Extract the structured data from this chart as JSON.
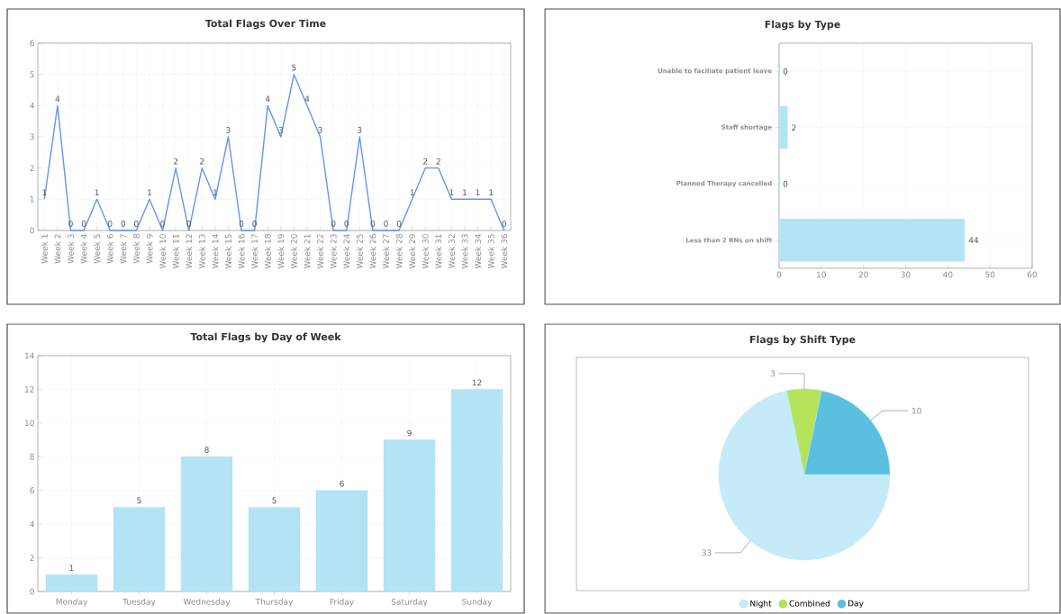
{
  "chart_data": [
    {
      "type": "line",
      "title": "Total Flags Over Time",
      "categories": [
        "Week 1",
        "Week 2",
        "Week 3",
        "Week 4",
        "Week 5",
        "Week 6",
        "Week 7",
        "Week 8",
        "Week 9",
        "Week 10",
        "Week 11",
        "Week 12",
        "Week 13",
        "Week 14",
        "Week 15",
        "Week 16",
        "Week 17",
        "Week 18",
        "Week 19",
        "Week 20",
        "Week 21",
        "Week 22",
        "Week 23",
        "Week 24",
        "Week 25",
        "Week 26",
        "Week 27",
        "Week 28",
        "Week 29",
        "Week 30",
        "Week 31",
        "Week 32",
        "Week 33",
        "Week 34",
        "Week 35",
        "Week 36"
      ],
      "values": [
        1,
        4,
        0,
        0,
        1,
        0,
        0,
        0,
        1,
        0,
        2,
        0,
        2,
        1,
        3,
        0,
        0,
        4,
        3,
        5,
        4,
        3,
        0,
        0,
        3,
        0,
        0,
        0,
        1,
        2,
        2,
        1,
        1,
        1,
        1,
        0
      ],
      "color": "#6495ed",
      "ylim": [
        0,
        6
      ],
      "yticks": [
        0,
        1,
        2,
        3,
        4,
        5,
        6
      ],
      "grid": true,
      "data_labels": true
    },
    {
      "type": "bar",
      "orientation": "horizontal",
      "title": "Flags by Type",
      "categories": [
        "Unable to faciliate patient leave",
        "Staff shortage",
        "Planned Therapy cancelled",
        "Less than 2 RNs on shift"
      ],
      "values": [
        0,
        2,
        0,
        44
      ],
      "color": "#b3e3f5",
      "xlim": [
        0,
        60
      ],
      "xticks": [
        0,
        10,
        20,
        30,
        40,
        50,
        60
      ],
      "grid": true,
      "data_labels": true
    },
    {
      "type": "bar",
      "title": "Total Flags by Day of Week",
      "categories": [
        "Monday",
        "Tuesday",
        "Wednesday",
        "Thursday",
        "Friday",
        "Saturday",
        "Sunday"
      ],
      "values": [
        1,
        5,
        8,
        5,
        6,
        9,
        12
      ],
      "color": "#b3e3f5",
      "ylim": [
        0,
        14
      ],
      "yticks": [
        0,
        2,
        4,
        6,
        8,
        10,
        12,
        14
      ],
      "grid": true,
      "data_labels": true
    },
    {
      "type": "pie",
      "title": "Flags by Shift Type",
      "categories": [
        "Night",
        "Combined",
        "Day"
      ],
      "values": [
        33,
        3,
        10
      ],
      "colors": [
        "#c5ebf8",
        "#b5e35a",
        "#5bbfe0"
      ],
      "legend": "bottom",
      "data_labels": true
    }
  ]
}
